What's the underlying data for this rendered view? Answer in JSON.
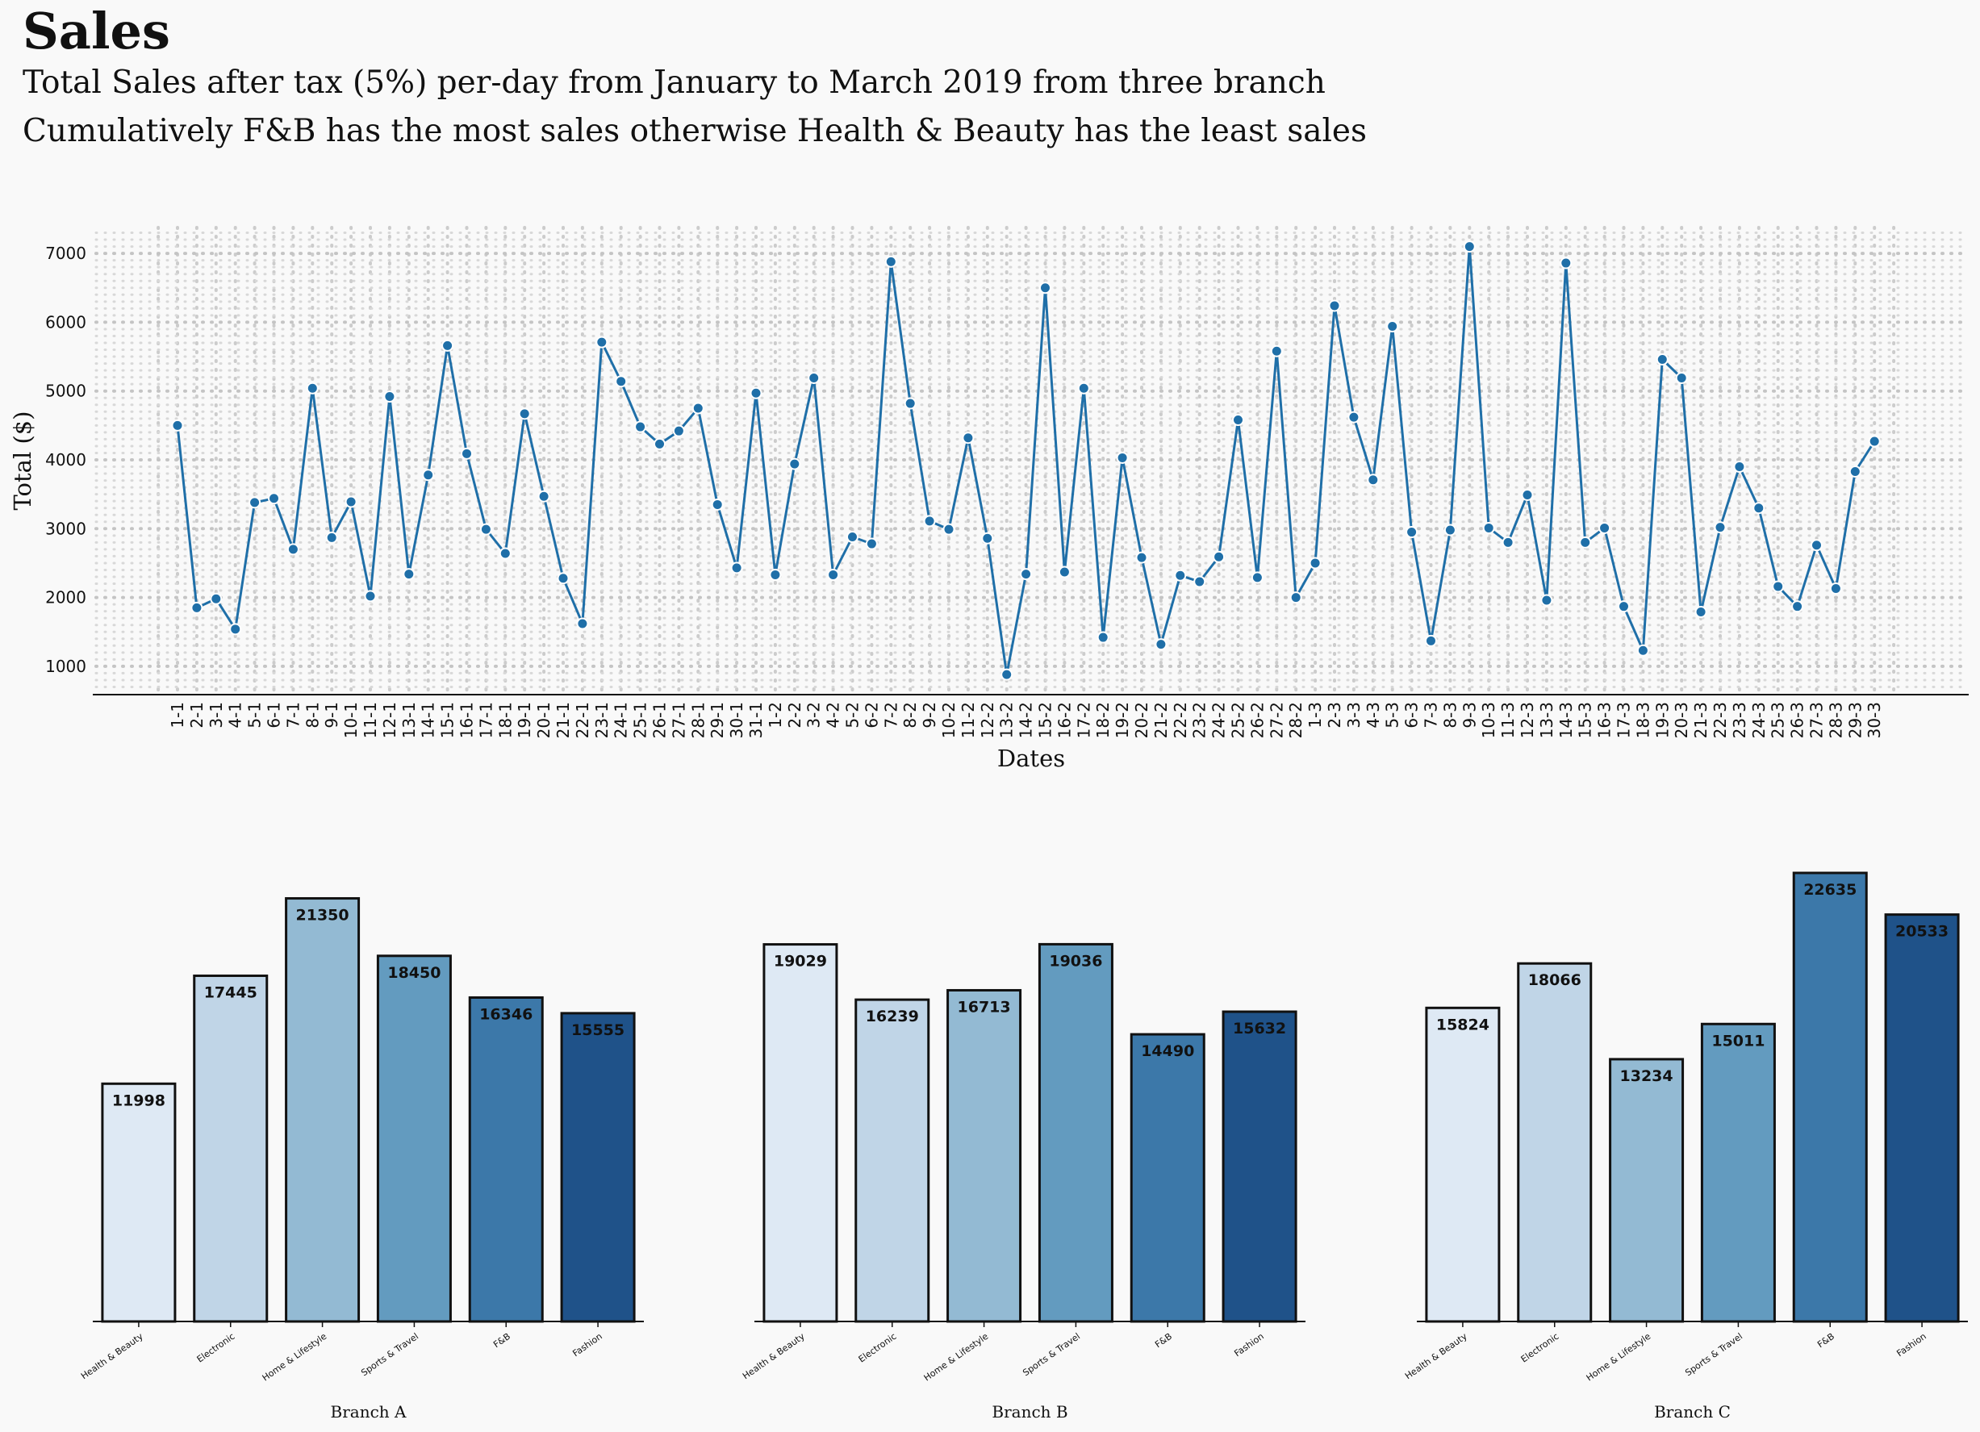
{
  "title": "Sales",
  "subtitle_1": "Total Sales after tax (5%) per-day from January to March 2019 from three branch",
  "subtitle_2": "Cumulatively F&B has the most sales otherwise Health & Beauty has the least sales",
  "colors": {
    "line": "#1f6fa8",
    "bars": [
      "#dee9f4",
      "#c0d5e7",
      "#93bad3",
      "#639bbf",
      "#3c78a9",
      "#1f5289"
    ]
  },
  "chart_data": [
    {
      "type": "line",
      "xlabel": "Dates",
      "ylabel": "Total ($)",
      "ylim": [
        600,
        7400
      ],
      "yticks": [
        1000,
        2000,
        3000,
        4000,
        5000,
        6000,
        7000
      ],
      "grid": true,
      "x": [
        "1-1",
        "2-1",
        "3-1",
        "4-1",
        "5-1",
        "6-1",
        "7-1",
        "8-1",
        "9-1",
        "10-1",
        "11-1",
        "12-1",
        "13-1",
        "14-1",
        "15-1",
        "16-1",
        "17-1",
        "18-1",
        "19-1",
        "20-1",
        "21-1",
        "22-1",
        "23-1",
        "24-1",
        "25-1",
        "26-1",
        "27-1",
        "28-1",
        "29-1",
        "30-1",
        "31-1",
        "1-2",
        "2-2",
        "3-2",
        "4-2",
        "5-2",
        "6-2",
        "7-2",
        "8-2",
        "9-2",
        "10-2",
        "11-2",
        "12-2",
        "13-2",
        "14-2",
        "15-2",
        "16-2",
        "17-2",
        "18-2",
        "19-2",
        "20-2",
        "21-2",
        "22-2",
        "23-2",
        "24-2",
        "25-2",
        "26-2",
        "27-2",
        "28-2",
        "1-3",
        "2-3",
        "3-3",
        "4-3",
        "5-3",
        "6-3",
        "7-3",
        "8-3",
        "9-3",
        "10-3",
        "11-3",
        "12-3",
        "13-3",
        "14-3",
        "15-3",
        "16-3",
        "17-3",
        "18-3",
        "19-3",
        "20-3",
        "21-3",
        "22-3",
        "23-3",
        "24-3",
        "25-3",
        "26-3",
        "27-3",
        "28-3",
        "29-3",
        "30-3"
      ],
      "y": [
        4500,
        1850,
        1980,
        1540,
        3380,
        3440,
        2700,
        5040,
        2870,
        3390,
        2020,
        4920,
        2340,
        3780,
        5660,
        4090,
        2990,
        2640,
        4670,
        3470,
        2280,
        1620,
        5710,
        5140,
        4480,
        4230,
        4420,
        4750,
        3350,
        2430,
        4970,
        2330,
        3940,
        5190,
        2330,
        2880,
        2780,
        6880,
        4820,
        3110,
        2990,
        4320,
        2860,
        880,
        2340,
        6500,
        2370,
        5040,
        1420,
        4030,
        2580,
        1320,
        2320,
        2230,
        2590,
        4580,
        2290,
        5580,
        2000,
        2500,
        6240,
        4620,
        3710,
        5940,
        2950,
        1370,
        2980,
        7100,
        3010,
        2800,
        3490,
        1960,
        6860,
        2800,
        3010,
        1870,
        1230,
        5460,
        5190,
        1790,
        3020,
        3900,
        3300,
        2160,
        1870,
        2760,
        2130,
        3830,
        4270
      ]
    },
    {
      "type": "bar",
      "xlabel": "Branch A",
      "categories": [
        "Health & Beauty",
        "Electronic",
        "Home & Lifestyle",
        "Sports & Travel",
        "F&B",
        "Fashion"
      ],
      "values": [
        11998,
        17445,
        21350,
        18450,
        16346,
        15555
      ]
    },
    {
      "type": "bar",
      "xlabel": "Branch B",
      "categories": [
        "Health & Beauty",
        "Electronic",
        "Home & Lifestyle",
        "Sports & Travel",
        "F&B",
        "Fashion"
      ],
      "values": [
        19029,
        16239,
        16713,
        19036,
        14490,
        15632
      ]
    },
    {
      "type": "bar",
      "xlabel": "Branch C",
      "categories": [
        "Health & Beauty",
        "Electronic",
        "Home & Lifestyle",
        "Sports & Travel",
        "F&B",
        "Fashion"
      ],
      "values": [
        15824,
        18066,
        13234,
        15011,
        22635,
        20533
      ]
    }
  ]
}
